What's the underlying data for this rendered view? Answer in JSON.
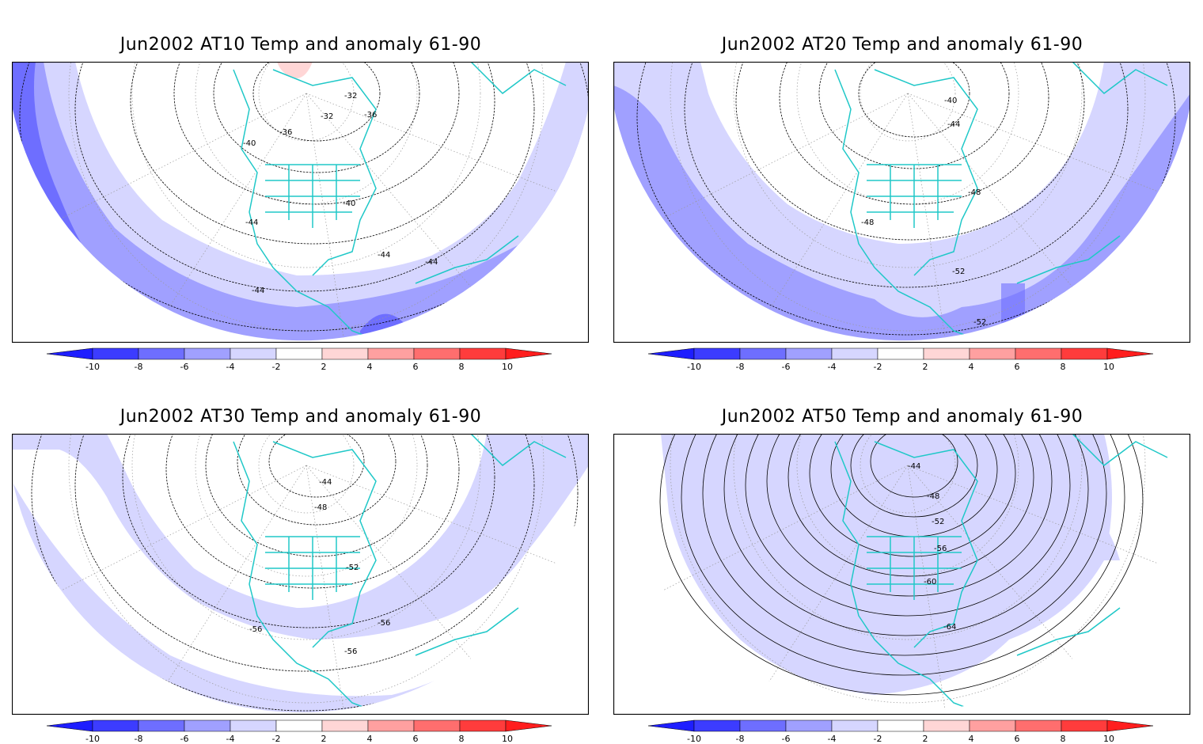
{
  "colorbar": {
    "ticks": [
      "-10",
      "-8",
      "-6",
      "-4",
      "-2",
      "2",
      "4",
      "6",
      "8",
      "10"
    ],
    "colors": [
      "#1e1eff",
      "#3c3cff",
      "#6e6eff",
      "#a0a0ff",
      "#d6d6ff",
      "#ffffff",
      "#ffd6d6",
      "#ffa0a0",
      "#ff6e6e",
      "#ff3c3c",
      "#ff1e1e"
    ]
  },
  "land_color": "#20c8c8",
  "panels": [
    {
      "title": "Jun2002 AT10 Temp and anomaly 61-90",
      "contour_labels": [
        "-32",
        "-32",
        "-36",
        "-36",
        "-40",
        "-40",
        "-44",
        "-44",
        "-44",
        "-44"
      ]
    },
    {
      "title": "Jun2002 AT20 Temp and anomaly 61-90",
      "contour_labels": [
        "-40",
        "-44",
        "-48",
        "-48",
        "-52",
        "-52"
      ]
    },
    {
      "title": "Jun2002 AT30 Temp and anomaly 61-90",
      "contour_labels": [
        "-44",
        "-48",
        "-52",
        "-56",
        "-56",
        "-56"
      ]
    },
    {
      "title": "Jun2002 AT50 Temp and anomaly 61-90",
      "contour_labels": [
        "-44",
        "-48",
        "-52",
        "-56",
        "-60",
        "-64"
      ]
    }
  ]
}
